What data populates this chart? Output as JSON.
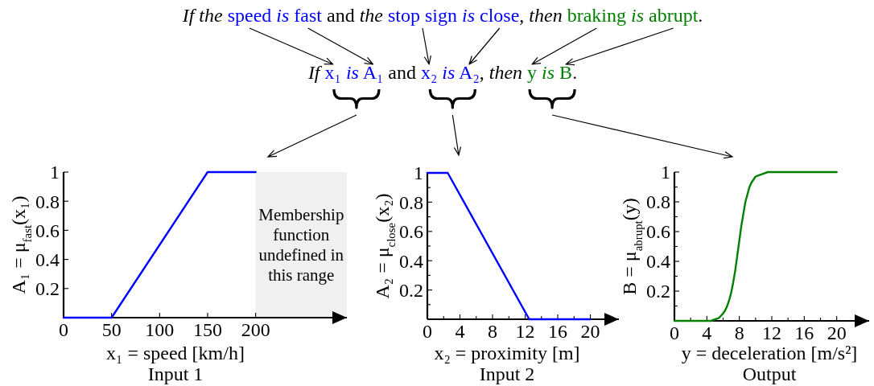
{
  "chart_data": [
    {
      "type": "other",
      "title": "If the speed is fast and the stop sign is close, then braking is abrupt.",
      "subtitle": "If x₁ is A₁ and x₂ is A₂, then y is B."
    },
    {
      "type": "line",
      "title": "Input 1",
      "xlabel": "x₁ = speed [km/h]",
      "ylabel": "A₁ = μ$_{fast}$(x₁)",
      "x": [
        0,
        50,
        150,
        200
      ],
      "series": [
        {
          "color": "#0000ff",
          "values": [
            0,
            0,
            1,
            1
          ]
        }
      ],
      "xlim": [
        0,
        295
      ],
      "ylim": [
        0,
        1
      ],
      "xticks": [
        0,
        50,
        100,
        150,
        200
      ],
      "yticks": [
        0.2,
        0.4,
        0.6,
        0.8,
        1
      ],
      "bands": [
        {
          "axis": "x",
          "from": 200,
          "to": 295,
          "label": "Membership function undefined in this range",
          "color": "#f0f0f0"
        }
      ]
    },
    {
      "type": "line",
      "title": "Input 2",
      "xlabel": "x₂ = proximity [m]",
      "ylabel": "A₂ = μ$_{close}$(x₂)",
      "x": [
        0,
        2.5,
        12.5,
        20
      ],
      "series": [
        {
          "color": "#0000ff",
          "values": [
            1,
            1,
            0,
            0
          ]
        }
      ],
      "xlim": [
        0,
        23.5
      ],
      "ylim": [
        0,
        1
      ],
      "xticks": [
        0,
        {
          "value": 2,
          "label": null
        },
        4,
        {
          "value": 6,
          "label": null
        },
        8,
        {
          "value": 10,
          "label": null
        },
        12,
        {
          "value": 14,
          "label": null
        },
        16,
        {
          "value": 18,
          "label": null
        },
        20
      ],
      "yticks": [
        {
          "value": 0.1,
          "label": null
        },
        0.2,
        {
          "value": 0.3,
          "label": null
        },
        0.4,
        {
          "value": 0.5,
          "label": null
        },
        0.6,
        {
          "value": 0.7,
          "label": null
        },
        0.8,
        {
          "value": 0.9,
          "label": null
        },
        1
      ]
    },
    {
      "type": "line",
      "title": "Output",
      "xlabel": "y = deceleration [m/s²]",
      "ylabel": "B = μ$_{abrupt}$(y)",
      "x": [
        0,
        2,
        4,
        4.5,
        5,
        5.5,
        6,
        6.25,
        6.5,
        6.75,
        7,
        7.25,
        7.5,
        7.75,
        8,
        8.25,
        8.5,
        8.75,
        9,
        9.25,
        9.5,
        9.75,
        10,
        10.5,
        11,
        11.5,
        12,
        14,
        16,
        18,
        20
      ],
      "series": [
        {
          "color": "#008000",
          "values": [
            0,
            0,
            0,
            0,
            0.01,
            0.02,
            0.05,
            0.07,
            0.1,
            0.14,
            0.19,
            0.26,
            0.34,
            0.44,
            0.54,
            0.64,
            0.72,
            0.8,
            0.85,
            0.9,
            0.93,
            0.95,
            0.97,
            0.98,
            0.99,
            1,
            1,
            1,
            1,
            1,
            1
          ]
        }
      ],
      "xlim": [
        0,
        24
      ],
      "ylim": [
        0,
        1
      ],
      "xticks": [
        0,
        {
          "value": 2,
          "label": null
        },
        4,
        {
          "value": 6,
          "label": null
        },
        8,
        {
          "value": 10,
          "label": null
        },
        12,
        {
          "value": 14,
          "label": null
        },
        16,
        {
          "value": 18,
          "label": null
        },
        20
      ],
      "yticks": [
        {
          "value": 0.1,
          "label": null
        },
        0.2,
        {
          "value": 0.3,
          "label": null
        },
        0.4,
        {
          "value": 0.5,
          "label": null
        },
        0.6,
        {
          "value": 0.7,
          "label": null
        },
        0.8,
        {
          "value": 0.9,
          "label": null
        },
        1
      ]
    }
  ]
}
